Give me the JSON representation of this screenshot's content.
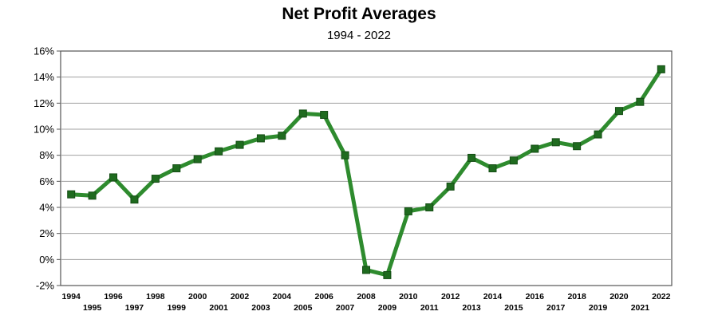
{
  "chart_data": {
    "type": "line",
    "title": "Net Profit Averages",
    "subtitle": "1994 - 2022",
    "xlabel": "",
    "ylabel": "",
    "ylim": [
      -2,
      16
    ],
    "y_ticks": [
      "16%",
      "14%",
      "12%",
      "10%",
      "8%",
      "6%",
      "4%",
      "2%",
      "0%",
      "-2%"
    ],
    "y_tick_values": [
      16,
      14,
      12,
      10,
      8,
      6,
      4,
      2,
      0,
      -2
    ],
    "categories": [
      "1994",
      "1995",
      "1996",
      "1997",
      "1998",
      "1999",
      "2000",
      "2001",
      "2002",
      "2003",
      "2004",
      "2005",
      "2006",
      "2007",
      "2008",
      "2009",
      "2010",
      "2011",
      "2012",
      "2013",
      "2014",
      "2015",
      "2016",
      "2017",
      "2018",
      "2019",
      "2020",
      "2021",
      "2022"
    ],
    "series": [
      {
        "values": [
          5.0,
          4.9,
          6.3,
          4.6,
          6.2,
          7.0,
          7.7,
          8.3,
          8.8,
          9.3,
          9.5,
          11.2,
          11.1,
          8.0,
          -0.8,
          -1.2,
          3.7,
          4.0,
          5.6,
          7.8,
          7.0,
          7.6,
          8.5,
          9.0,
          8.7,
          9.6,
          11.4,
          12.1,
          14.6
        ],
        "color": "#1f7a1f"
      }
    ],
    "grid": true,
    "legend": "none",
    "colors": {
      "line": "#2e8b2e",
      "marker": "#1f6b1f",
      "grid": "#a0a0a0",
      "frame": "#555555"
    }
  }
}
